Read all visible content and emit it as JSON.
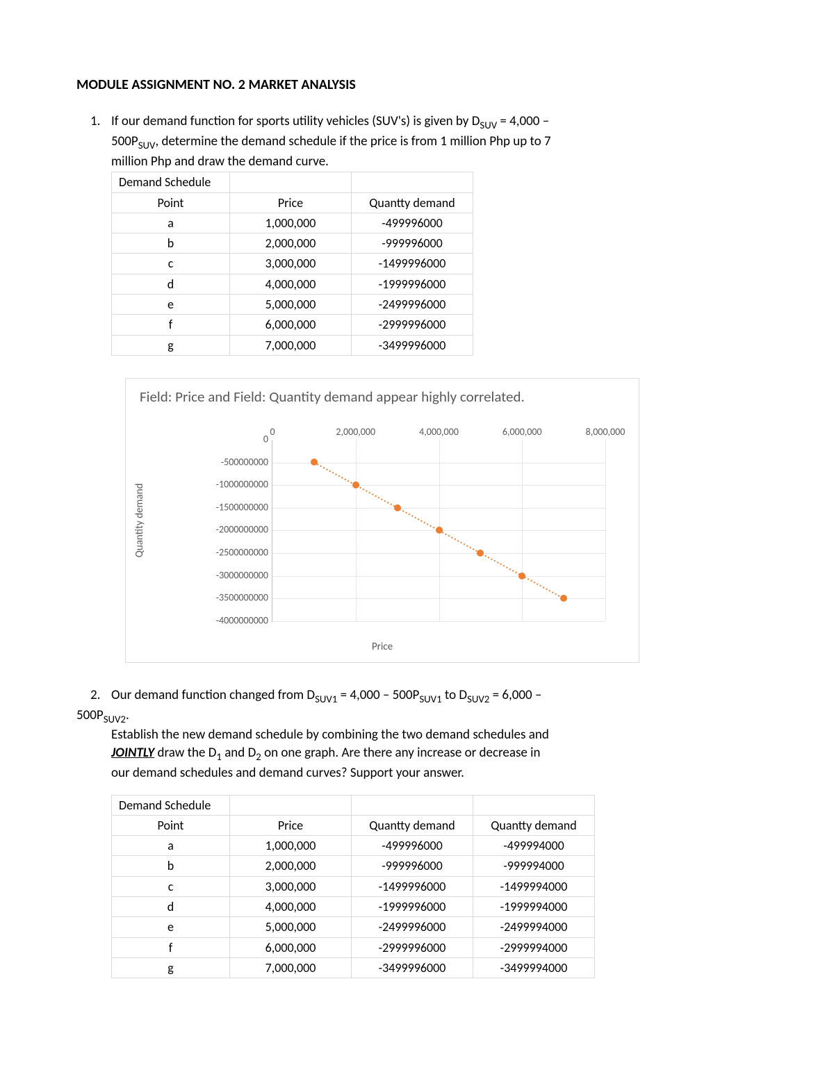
{
  "title": "MODULE ASSIGNMENT NO. 2 MARKET ANALYSIS",
  "q1": {
    "num": "1.",
    "line1a": "If our demand function for sports utility vehicles (SUV's) is given by D",
    "sub1": "SUV",
    "line1b": "  = 4,000 –",
    "line2a": "500P",
    "sub2": "SUV",
    "line2b": ", determine the demand schedule if the price is from 1 million Php up to 7",
    "line3": "million Php and draw the demand curve."
  },
  "table1": {
    "header_label": "Demand Schedule",
    "col1": "Point",
    "col2": "Price",
    "col3": "Quantty demand",
    "rows": [
      {
        "p": "a",
        "price": "1,000,000",
        "q": "-499996000"
      },
      {
        "p": "b",
        "price": "2,000,000",
        "q": "-999996000"
      },
      {
        "p": "c",
        "price": "3,000,000",
        "q": "-1499996000"
      },
      {
        "p": "d",
        "price": "4,000,000",
        "q": "-1999996000"
      },
      {
        "p": "e",
        "price": "5,000,000",
        "q": "-2499996000"
      },
      {
        "p": "f",
        "price": "6,000,000",
        "q": "-2999996000"
      },
      {
        "p": "g",
        "price": "7,000,000",
        "q": "-3499996000"
      }
    ]
  },
  "chart": {
    "title": "Field: Price and Field: Quantity demand appear highly correlated.",
    "xlabel": "Price",
    "ylabel": "Quantity demand",
    "x_ticks": [
      {
        "v": 0,
        "label": "0"
      },
      {
        "v": 2000000,
        "label": "2,000,000"
      },
      {
        "v": 4000000,
        "label": "4,000,000"
      },
      {
        "v": 6000000,
        "label": "6,000,000"
      },
      {
        "v": 8000000,
        "label": "8,000,000"
      }
    ],
    "y_ticks": [
      {
        "v": 0,
        "label": "0"
      },
      {
        "v": -500000000,
        "label": "-500000000"
      },
      {
        "v": -1000000000,
        "label": "-1000000000"
      },
      {
        "v": -1500000000,
        "label": "-1500000000"
      },
      {
        "v": -2000000000,
        "label": "-2000000000"
      },
      {
        "v": -2500000000,
        "label": "-2500000000"
      },
      {
        "v": -3000000000,
        "label": "-3000000000"
      },
      {
        "v": -3500000000,
        "label": "-3500000000"
      },
      {
        "v": -4000000000,
        "label": "-4000000000"
      }
    ],
    "xlim": [
      0,
      8000000
    ],
    "ylim": [
      -4000000000,
      0
    ],
    "points": [
      {
        "x": 1000000,
        "y": -499996000
      },
      {
        "x": 2000000,
        "y": -999996000
      },
      {
        "x": 3000000,
        "y": -1499996000
      },
      {
        "x": 4000000,
        "y": -1999996000
      },
      {
        "x": 5000000,
        "y": -2499996000
      },
      {
        "x": 6000000,
        "y": -2999996000
      },
      {
        "x": 7000000,
        "y": -3499996000
      }
    ],
    "marker_color": "#ed7d31",
    "line_color": "#ed7d31",
    "line_dash": "2,3",
    "line_width": 2,
    "grid_color": "#e6e6e6",
    "text_color": "#595959"
  },
  "q2": {
    "num": "2.",
    "line1a": "Our demand function changed from D",
    "sub1": "SUV1",
    "line1b": " = 4,000 – 500P",
    "sub2": "SUV1",
    "line1c": " to D",
    "sub3": "SUV2",
    "line1d": " = 6,000 –",
    "line2a": "500P",
    "sub4": "SUV2",
    "line2b": ".",
    "line3": "Establish the new demand schedule by combining the two demand schedules and",
    "jointly": "JOINTLY",
    "line4a": " draw the D",
    "sub5": "1",
    "line4b": "  and D",
    "sub6": "2",
    "line4c": " on one graph. Are there any increase or decrease in",
    "line5": "our demand schedules and demand curves? Support your answer."
  },
  "table2": {
    "header_label": "Demand Schedule",
    "col1": "Point",
    "col2": "Price",
    "col3": "Quantty demand",
    "col4": "Quantty demand",
    "rows": [
      {
        "p": "a",
        "price": "1,000,000",
        "q1": "-499996000",
        "q2": "-499994000"
      },
      {
        "p": "b",
        "price": "2,000,000",
        "q1": "-999996000",
        "q2": "-999994000"
      },
      {
        "p": "c",
        "price": "3,000,000",
        "q1": "-1499996000",
        "q2": "-1499994000"
      },
      {
        "p": "d",
        "price": "4,000,000",
        "q1": "-1999996000",
        "q2": "-1999994000"
      },
      {
        "p": "e",
        "price": "5,000,000",
        "q1": "-2499996000",
        "q2": "-2499994000"
      },
      {
        "p": "f",
        "price": "6,000,000",
        "q1": "-2999996000",
        "q2": "-2999994000"
      },
      {
        "p": "g",
        "price": "7,000,000",
        "q1": "-3499996000",
        "q2": "-3499994000"
      }
    ]
  }
}
